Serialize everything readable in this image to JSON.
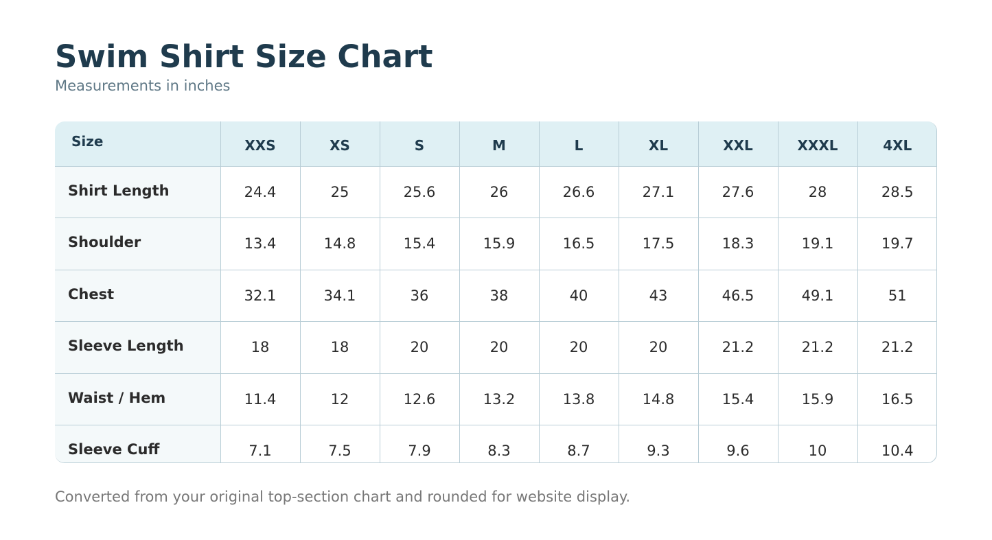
{
  "header": {
    "title": "Swim Shirt Size Chart",
    "subtitle": "Measurements in inches"
  },
  "table": {
    "columns": [
      "Size",
      "XXS",
      "XS",
      "S",
      "M",
      "L",
      "XL",
      "XXL",
      "XXXL",
      "4XL"
    ],
    "rows": [
      [
        "Shirt Length",
        24.4,
        25,
        25.6,
        26,
        26.6,
        27.1,
        27.6,
        28,
        28.5
      ],
      [
        "Shoulder",
        13.4,
        14.8,
        15.4,
        15.9,
        16.5,
        17.5,
        18.3,
        19.1,
        19.7
      ],
      [
        "Chest",
        32.1,
        34.1,
        36,
        38,
        40,
        43,
        46.5,
        49.1,
        51
      ],
      [
        "Sleeve Length",
        18,
        18,
        20,
        20,
        20,
        20,
        21.2,
        21.2,
        21.2
      ],
      [
        "Waist / Hem",
        11.4,
        12,
        12.6,
        13.2,
        13.8,
        14.8,
        15.4,
        15.9,
        16.5
      ],
      [
        "Sleeve Cuff",
        7.1,
        7.5,
        7.9,
        8.3,
        8.7,
        9.3,
        9.6,
        10,
        10.4
      ]
    ]
  },
  "footer": {
    "note": "Converted from your original top-section chart and rounded for website display."
  }
}
